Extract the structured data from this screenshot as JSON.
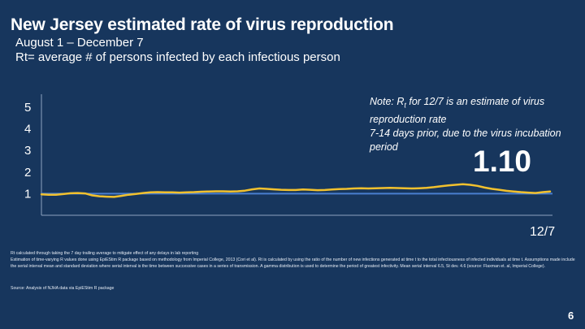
{
  "title": "New Jersey estimated rate of virus reproduction",
  "subtitle_1": "August 1 – December 7",
  "subtitle_2": "Rt= average # of persons infected by each infectious person",
  "note": {
    "prefix": "Note: R",
    "subscript": "t",
    "rest": " for 12/7 is an estimate of virus reproduction rate",
    "line2": "7-14 days prior, due to the virus incubation period"
  },
  "current_value": "1.10",
  "x_end_label": "12/7",
  "footnotes": [
    "Rt calculated through taking the 7 day trailing average to mitigate effect of any delays in lab reporting",
    "Estimation of time-varying R values done using EpiEStim R package based on methodology from Imperial College, 2013 (Cori et al).   Rt is calculated by using the ratio of the number of new infections generated at time t to the total infectiousness of infected individuals at time t.  Assumptions made include the serial interval mean and standard deviation where serial interval is the time between successive cases in a series of transmission.  A gamma distribution is used to determine the period of greatest infectivity.  Mean serial interval 6.5, St dev. 4.6 (source: Flaxman et. al, Imperial College)."
  ],
  "source": "Source: Analysis of NJHA data via EpiEStim R package",
  "page_number": "6",
  "colors": {
    "background": "#17365d",
    "series": "#f2c12e",
    "reference": "#4a7fd0",
    "axis": "#8ea3c0"
  },
  "chart_data": {
    "type": "line",
    "x_start": "8/1",
    "x_end": "12/7",
    "ylim": [
      0,
      5.6
    ],
    "yticks": [
      1,
      2,
      3,
      4,
      5
    ],
    "reference_line": 1.0,
    "series": [
      {
        "values": [
          0.97,
          0.95,
          0.95,
          0.98,
          1.02,
          1.03,
          1.01,
          0.92,
          0.88,
          0.86,
          0.85,
          0.9,
          0.95,
          0.99,
          1.03,
          1.06,
          1.07,
          1.06,
          1.06,
          1.05,
          1.06,
          1.07,
          1.09,
          1.1,
          1.11,
          1.11,
          1.1,
          1.11,
          1.14,
          1.2,
          1.24,
          1.22,
          1.2,
          1.18,
          1.17,
          1.17,
          1.19,
          1.18,
          1.16,
          1.17,
          1.19,
          1.21,
          1.22,
          1.24,
          1.25,
          1.24,
          1.25,
          1.26,
          1.27,
          1.26,
          1.25,
          1.24,
          1.25,
          1.27,
          1.3,
          1.34,
          1.38,
          1.41,
          1.44,
          1.41,
          1.36,
          1.28,
          1.22,
          1.18,
          1.13,
          1.1,
          1.07,
          1.05,
          1.03,
          1.07,
          1.1
        ]
      }
    ]
  }
}
